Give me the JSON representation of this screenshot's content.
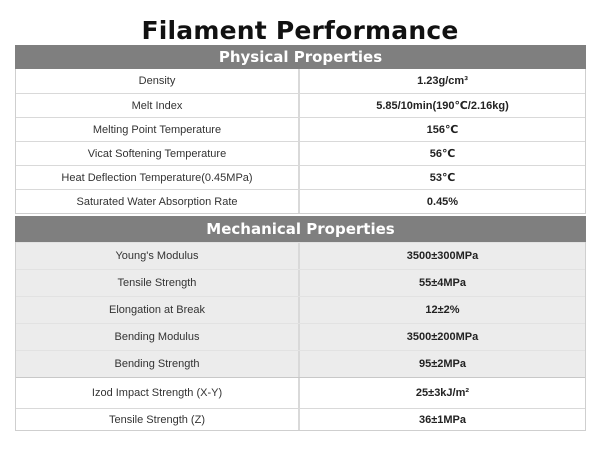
{
  "title": "Filament Performance",
  "physical": {
    "header": "Physical Properties",
    "rows": [
      {
        "label": "Density",
        "value": "1.23g/cm³"
      },
      {
        "label": "Melt Index",
        "value": "5.85/10min(190℃/2.16kg)"
      },
      {
        "label": "Melting Point Temperature",
        "value": "156℃"
      },
      {
        "label": "Vicat Softening Temperature",
        "value": "56℃"
      },
      {
        "label": "Heat Deflection Temperature(0.45MPa)",
        "value": "53℃"
      },
      {
        "label": "Saturated Water Absorption Rate",
        "value": "0.45%"
      }
    ]
  },
  "mechanical": {
    "header": "Mechanical Properties",
    "rows": [
      {
        "label": "Young's Modulus",
        "value": "3500±300MPa"
      },
      {
        "label": "Tensile Strength",
        "value": "55±4MPa"
      },
      {
        "label": "Elongation at Break",
        "value": "12±2%"
      },
      {
        "label": "Bending Modulus",
        "value": "3500±200MPa"
      },
      {
        "label": "Bending Strength",
        "value": "95±2MPa"
      },
      {
        "label": "Izod Impact Strength (X-Y)",
        "value": "25±3kJ/m²"
      },
      {
        "label": "Tensile Strength (Z)",
        "value": "36±1MPa"
      }
    ]
  },
  "colors": {
    "header_bg": "#7f7f7f",
    "header_text": "#ffffff",
    "shaded_row_bg": "#ececec"
  }
}
